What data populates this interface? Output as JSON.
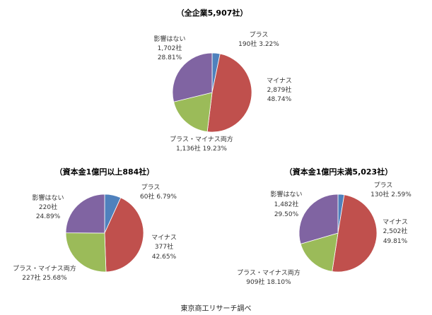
{
  "source": "東京商工リサーチ調べ",
  "colors": {
    "plus": "#4f81bd",
    "minus": "#c0504d",
    "both": "#9bbb59",
    "none": "#8064a2",
    "leader": "#888888"
  },
  "chart_data": [
    {
      "type": "pie",
      "title": "（全企業5,907社）",
      "slices": [
        {
          "category": "プラス",
          "count_text": "190社",
          "pct_text": "3.22%",
          "value": 3.22,
          "color_key": "plus"
        },
        {
          "category": "マイナス",
          "count_text": "2,879社",
          "pct_text": "48.74%",
          "value": 48.74,
          "color_key": "minus"
        },
        {
          "category": "プラス・マイナス両方",
          "count_text": "1,136社",
          "pct_text": "19.23%",
          "value": 19.23,
          "color_key": "both"
        },
        {
          "category": "影響はない",
          "count_text": "1,702社",
          "pct_text": "28.81%",
          "value": 28.81,
          "color_key": "none"
        }
      ]
    },
    {
      "type": "pie",
      "title": "（資本金1億円以上884社）",
      "slices": [
        {
          "category": "プラス",
          "count_text": "60社",
          "pct_text": "6.79%",
          "value": 6.79,
          "color_key": "plus"
        },
        {
          "category": "マイナス",
          "count_text": "377社",
          "pct_text": "42.65%",
          "value": 42.65,
          "color_key": "minus"
        },
        {
          "category": "プラス・マイナス両方",
          "count_text": "227社",
          "pct_text": "25.68%",
          "value": 25.68,
          "color_key": "both"
        },
        {
          "category": "影響はない",
          "count_text": "220社",
          "pct_text": "24.89%",
          "value": 24.89,
          "color_key": "none"
        }
      ]
    },
    {
      "type": "pie",
      "title": "（資本金1億円未満5,023社）",
      "slices": [
        {
          "category": "プラス",
          "count_text": "130社",
          "pct_text": "2.59%",
          "value": 2.59,
          "color_key": "plus"
        },
        {
          "category": "マイナス",
          "count_text": "2,502社",
          "pct_text": "49.81%",
          "value": 49.81,
          "color_key": "minus"
        },
        {
          "category": "プラス・マイナス両方",
          "count_text": "909社",
          "pct_text": "18.10%",
          "value": 18.1,
          "color_key": "both"
        },
        {
          "category": "影響はない",
          "count_text": "1,482社",
          "pct_text": "29.50%",
          "value": 29.5,
          "color_key": "none"
        }
      ]
    }
  ]
}
